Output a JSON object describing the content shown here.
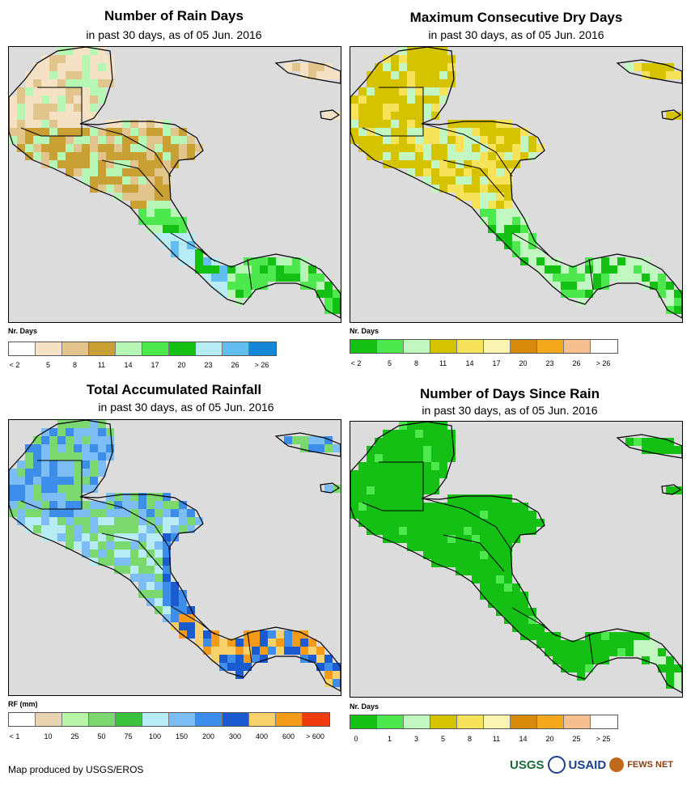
{
  "panels": [
    {
      "title": "Number of Rain Days",
      "subtitle": "in past 30 days, as of 05 Jun. 2016",
      "legend_label": "Nr. Days",
      "colors": [
        "#ffffff",
        "#f5e1c3",
        "#e2c58d",
        "#c9a033",
        "#b6f7b6",
        "#4de84d",
        "#14c014",
        "#b8ecf5",
        "#62bdf0",
        "#1488d6"
      ],
      "ticks": [
        "< 2",
        "5",
        "8",
        "11",
        "14",
        "17",
        "20",
        "23",
        "26",
        "> 26"
      ]
    },
    {
      "title": "Maximum Consecutive Dry Days",
      "subtitle": "in past 30 days, as of 05 Jun. 2016",
      "legend_label": "Nr. Days",
      "colors": [
        "#14c014",
        "#4de84d",
        "#c2f7c2",
        "#d6c300",
        "#f7e35a",
        "#fbf5b3",
        "#d98a0a",
        "#f5a81c",
        "#f5bf8f",
        "#ffffff"
      ],
      "ticks": [
        "< 2",
        "5",
        "8",
        "11",
        "14",
        "17",
        "20",
        "23",
        "26",
        "> 26"
      ]
    },
    {
      "title": "Total Accumulated Rainfall",
      "subtitle": "in past 30 days, as of 05 Jun. 2016",
      "legend_label": "RF (mm)",
      "colors": [
        "#ffffff",
        "#e8d4b1",
        "#b8f5a8",
        "#7bd86e",
        "#3bc43b",
        "#b8ecf5",
        "#7dbdf5",
        "#3d8eeb",
        "#1a5ccf",
        "#f7d26c",
        "#f59b1a",
        "#f03c0c"
      ],
      "ticks": [
        "< 1",
        "10",
        "25",
        "50",
        "75",
        "100",
        "150",
        "200",
        "300",
        "400",
        "600",
        "> 600"
      ]
    },
    {
      "title": "Number of Days Since Rain",
      "subtitle": "in past 30 days, as of 05 Jun. 2016",
      "legend_label": "Nr. Days",
      "colors": [
        "#14c014",
        "#4de84d",
        "#c2f7c2",
        "#d6c300",
        "#f7e35a",
        "#fbf5b3",
        "#d98a0a",
        "#f5a81c",
        "#f5bf8f",
        "#ffffff"
      ],
      "ticks": [
        "0",
        "1",
        "3",
        "5",
        "8",
        "11",
        "14",
        "20",
        "25",
        "> 25"
      ]
    }
  ],
  "footer": "Map produced by USGS/EROS",
  "logos": {
    "usgs": "USGS",
    "usaid": "USAID",
    "fewsnet": "FEWS NET"
  }
}
